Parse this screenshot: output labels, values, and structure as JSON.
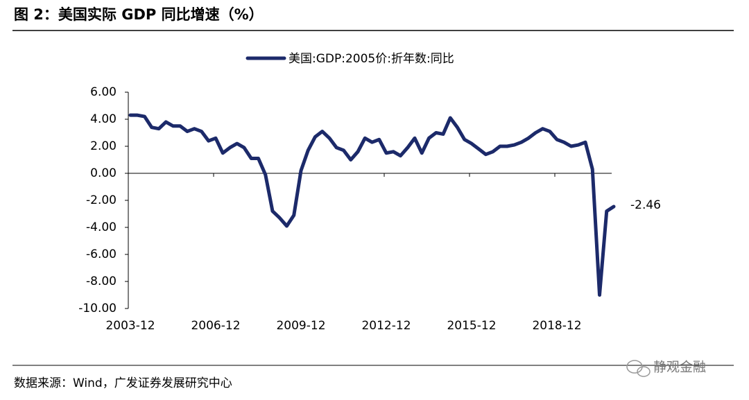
{
  "header": {
    "title": "图 2：美国实际 GDP 同比增速（%）"
  },
  "chart_data": {
    "type": "line",
    "categories": [
      "2003-12",
      null,
      null,
      null,
      null,
      null,
      null,
      null,
      null,
      null,
      null,
      null,
      "2006-12",
      null,
      null,
      null,
      null,
      null,
      null,
      null,
      null,
      null,
      null,
      null,
      "2009-12",
      null,
      null,
      null,
      null,
      null,
      null,
      null,
      null,
      null,
      null,
      null,
      "2012-12",
      null,
      null,
      null,
      null,
      null,
      null,
      null,
      null,
      null,
      null,
      null,
      "2015-12",
      null,
      null,
      null,
      null,
      null,
      null,
      null,
      null,
      null,
      null,
      null,
      "2018-12",
      null,
      null,
      null,
      null,
      null,
      null,
      null,
      null
    ],
    "series": [
      {
        "name": "美国:GDP:2005价:折年数:同比",
        "color": "#1c2a6a",
        "values": [
          4.3,
          4.3,
          4.2,
          3.4,
          3.3,
          3.8,
          3.5,
          3.5,
          3.1,
          3.3,
          3.1,
          2.4,
          2.6,
          1.5,
          1.9,
          2.2,
          1.9,
          1.1,
          1.1,
          -0.1,
          -2.8,
          -3.3,
          -3.9,
          -3.1,
          0.2,
          1.7,
          2.7,
          3.1,
          2.6,
          1.9,
          1.7,
          1.0,
          1.6,
          2.6,
          2.3,
          2.5,
          1.5,
          1.6,
          1.3,
          1.9,
          2.6,
          1.5,
          2.6,
          3.0,
          2.9,
          4.1,
          3.4,
          2.5,
          2.2,
          1.8,
          1.4,
          1.6,
          2.0,
          2.0,
          2.1,
          2.3,
          2.6,
          3.0,
          3.3,
          3.1,
          2.5,
          2.3,
          2.0,
          2.1,
          2.3,
          0.3,
          -9.0,
          -2.8,
          -2.46
        ]
      }
    ],
    "ylim": [
      -10,
      6
    ],
    "yticks": [
      {
        "value": -10,
        "label": "-10.00"
      },
      {
        "value": -8,
        "label": "-8.00"
      },
      {
        "value": -6,
        "label": "-6.00"
      },
      {
        "value": -4,
        "label": "-4.00"
      },
      {
        "value": -2,
        "label": "-2.00"
      },
      {
        "value": 0,
        "label": "0.00"
      },
      {
        "value": 2,
        "label": "2.00"
      },
      {
        "value": 4,
        "label": "4.00"
      },
      {
        "value": 6,
        "label": "6.00"
      }
    ],
    "legend": "top"
  },
  "footer": {
    "source": "数据来源：Wind，广发证券发展研究中心",
    "watermark": "静观金融"
  }
}
